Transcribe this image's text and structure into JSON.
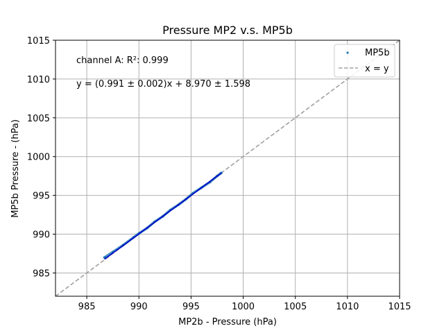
{
  "chart_data": {
    "type": "scatter",
    "title": "Pressure MP2 v.s. MP5b",
    "xlabel": "MP2b - Pressure (hPa)",
    "ylabel": "MP5b Pressure - (hPa)",
    "xlim": [
      982,
      1015
    ],
    "ylim": [
      982,
      1015
    ],
    "xticks": [
      "985",
      "990",
      "995",
      "1000",
      "1005",
      "1010",
      "1015"
    ],
    "yticks": [
      "985",
      "990",
      "995",
      "1000",
      "1005",
      "1010",
      "1015"
    ],
    "grid": true,
    "legend_position": "top-right",
    "annotations": [
      "channel A: R²: 0.999",
      "y = (0.991 ± 0.002)x + 8.970 ± 1.598"
    ],
    "series": [
      {
        "name": "MP5b",
        "kind": "scatter",
        "color": "#1f77b4",
        "x": [
          986.7,
          987.5,
          988.5,
          989.5,
          990.0,
          990.8,
          991.5,
          992.3,
          993.0,
          993.8,
          994.5,
          995.2,
          996.0,
          996.8,
          997.5,
          997.9
        ],
        "y": [
          987.0,
          987.7,
          988.6,
          989.6,
          990.1,
          990.8,
          991.6,
          992.3,
          993.1,
          993.8,
          994.5,
          995.3,
          996.0,
          996.7,
          997.5,
          997.9
        ]
      },
      {
        "name": "x = y",
        "kind": "line",
        "style": "dashed",
        "color": "#a0a0a0",
        "x": [
          982,
          1015
        ],
        "y": [
          982,
          1015
        ]
      },
      {
        "name": "",
        "kind": "fit-line",
        "color": "#0000cc",
        "x": [
          986.7,
          997.9
        ],
        "y": [
          986.77,
          997.87
        ]
      }
    ]
  }
}
